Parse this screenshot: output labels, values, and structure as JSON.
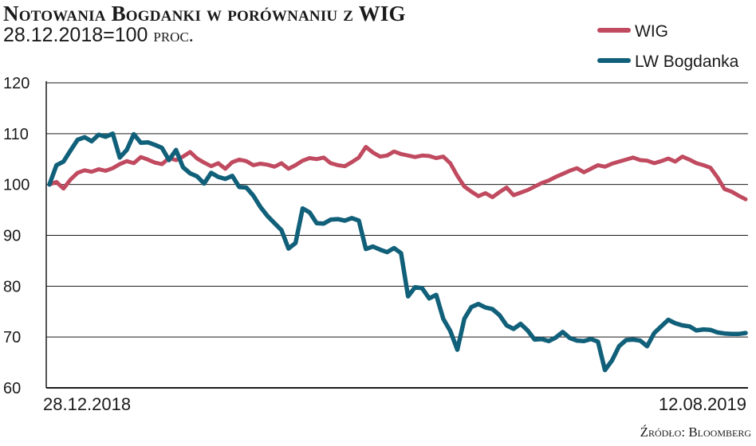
{
  "header": {
    "title": "Notowania Bogdanki w porównaniu z WIG",
    "subtitle_main": "28.12.2018=100",
    "subtitle_unit": "proc."
  },
  "footer": {
    "source": "Źródło: Bloomberg"
  },
  "chart_data": {
    "type": "line",
    "title": "Notowania Bogdanki w porównaniu z WIG",
    "subtitle": "28.12.2018=100 proc.",
    "xlabel": "",
    "ylabel": "",
    "ylim": [
      60,
      120
    ],
    "y_ticks": [
      60,
      70,
      80,
      90,
      100,
      110,
      120
    ],
    "x_tick_labels": [
      "28.12.2018",
      "12.08.2019"
    ],
    "grid": true,
    "legend_position": "top-right",
    "series": [
      {
        "name": "WIG",
        "color": "#c04a5f",
        "values": [
          100,
          100.5,
          99.2,
          101,
          102.3,
          102.8,
          102.5,
          103,
          102.7,
          103.2,
          104,
          104.6,
          104.2,
          105.4,
          104.9,
          104.3,
          104,
          105.2,
          104.8,
          105.5,
          106.4,
          105.1,
          104.3,
          103.6,
          104.2,
          103.1,
          104.4,
          104.9,
          104.6,
          103.8,
          104.1,
          103.9,
          103.5,
          104.2,
          103.1,
          103.8,
          104.7,
          105.2,
          105,
          105.3,
          104.2,
          103.8,
          103.6,
          104.4,
          105.3,
          107.4,
          106.3,
          105.5,
          105.7,
          106.5,
          106,
          105.7,
          105.4,
          105.7,
          105.6,
          105.2,
          105.5,
          104.2,
          101.7,
          99.6,
          98.6,
          97.7,
          98.3,
          97.5,
          98.5,
          99.4,
          97.9,
          98.4,
          98.9,
          99.6,
          100.3,
          100.8,
          101.5,
          102.1,
          102.7,
          103.2,
          102.4,
          103.1,
          103.8,
          103.5,
          104.1,
          104.5,
          104.9,
          105.3,
          104.8,
          104.7,
          104.2,
          104.6,
          105.1,
          104.5,
          105.5,
          104.9,
          104.2,
          103.8,
          103.3,
          101.4,
          99.1,
          98.6,
          97.8,
          97.1
        ]
      },
      {
        "name": "LW Bogdanka",
        "color": "#11607a",
        "values": [
          100,
          103.8,
          104.5,
          106.7,
          108.8,
          109.3,
          108.5,
          109.8,
          109.4,
          110,
          105.3,
          106.8,
          109.9,
          108.2,
          108.3,
          107.8,
          107.2,
          104.8,
          106.8,
          103.4,
          102.2,
          101.6,
          100.2,
          102.3,
          101.5,
          101.1,
          101.7,
          99.5,
          99.4,
          97.8,
          95.6,
          93.8,
          92.4,
          91,
          87.4,
          88.5,
          95.3,
          94.5,
          92.4,
          92.3,
          93.1,
          93.2,
          92.9,
          93.4,
          92.9,
          87.3,
          87.8,
          87.2,
          86.7,
          87.5,
          86.5,
          78,
          79.8,
          79.6,
          77.6,
          78.3,
          73.6,
          71.2,
          67.5,
          73.6,
          75.9,
          76.5,
          75.8,
          75.5,
          74.3,
          72.3,
          71.6,
          72.6,
          71.3,
          69.5,
          69.6,
          69.2,
          69.9,
          71,
          69.8,
          69.3,
          69.2,
          69.6,
          69.1,
          63.5,
          65.4,
          68.2,
          69.4,
          69.5,
          69.3,
          68.2,
          70.8,
          72.1,
          73.4,
          72.7,
          72.3,
          72.1,
          71.3,
          71.5,
          71.4,
          70.9,
          70.7,
          70.6,
          70.6,
          70.8
        ]
      }
    ]
  }
}
